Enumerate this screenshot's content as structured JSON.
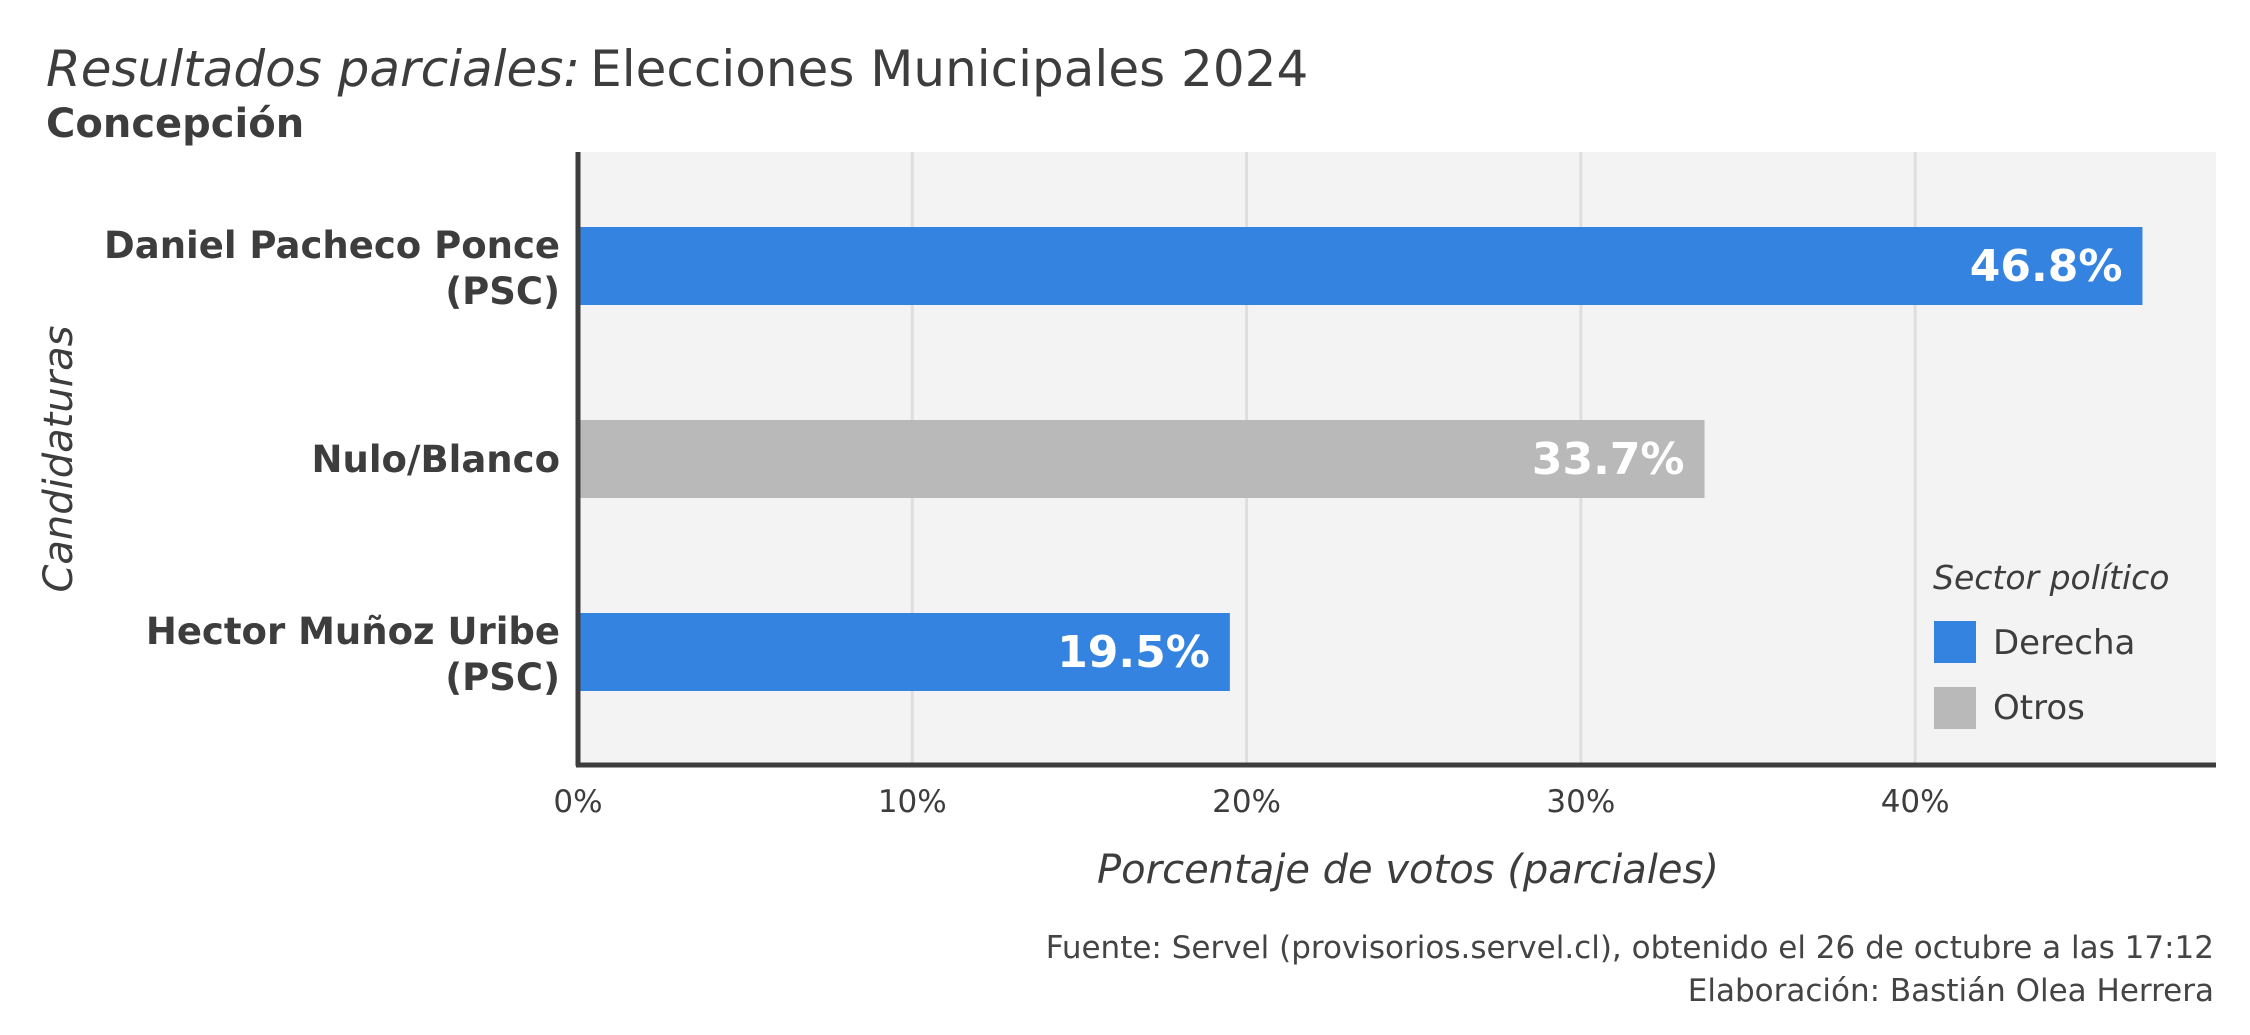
{
  "chart_data": {
    "type": "bar",
    "orientation": "horizontal",
    "title_prefix": "Resultados parciales:",
    "title": "Elecciones Municipales 2024",
    "subtitle": "Concepción",
    "xlabel": "Porcentaje de votos (parciales)",
    "ylabel": "Candidaturas",
    "xlim": [
      0,
      49
    ],
    "x_ticks": [
      0,
      10,
      20,
      30,
      40
    ],
    "x_tick_labels": [
      "0%",
      "10%",
      "20%",
      "30%",
      "40%"
    ],
    "grid": "vertical",
    "categories": [
      {
        "line1": "Daniel Pacheco Ponce",
        "line2": "(PSC)"
      },
      {
        "line1": "Nulo/Blanco",
        "line2": ""
      },
      {
        "line1": "Hector Muñoz Uribe",
        "line2": "(PSC)"
      }
    ],
    "values": [
      46.8,
      33.7,
      19.5
    ],
    "value_labels": [
      "46.8%",
      "33.7%",
      "19.5%"
    ],
    "sectors": [
      "Derecha",
      "Otros",
      "Derecha"
    ],
    "legend": {
      "title": "Sector político",
      "placement": "bottom-right",
      "items": [
        {
          "label": "Derecha",
          "color": "#3583e0"
        },
        {
          "label": "Otros",
          "color": "#b9b9b9"
        }
      ]
    },
    "colors": {
      "Derecha": "#3583e0",
      "Otros": "#b9b9b9"
    }
  },
  "footer": {
    "source": "Fuente: Servel (provisorios.servel.cl), obtenido el 26 de octubre a las 17:12",
    "credit": "Elaboración: Bastián Olea Herrera"
  }
}
